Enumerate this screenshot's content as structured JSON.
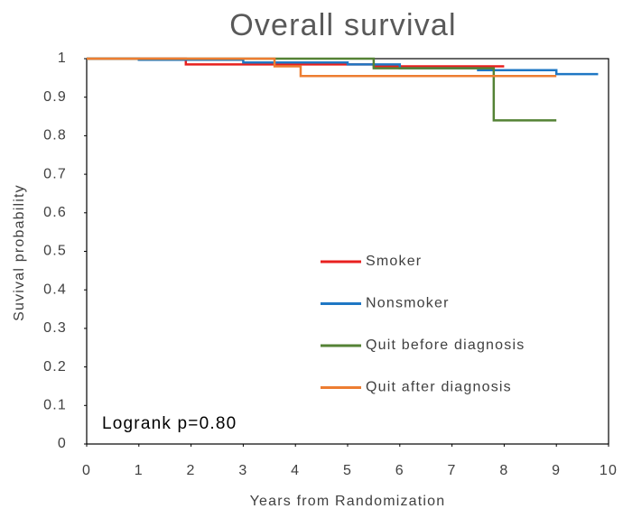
{
  "chart_data": {
    "type": "line",
    "step": true,
    "title": "Overall survival",
    "x_label": "Years from Randomization",
    "y_label": "Suvival probability",
    "annotation": "Logrank p=0.80",
    "xlim": [
      0,
      10
    ],
    "ylim": [
      0,
      1
    ],
    "xticks": [
      0,
      1,
      2,
      3,
      4,
      5,
      6,
      7,
      8,
      9,
      10
    ],
    "yticks": [
      0,
      0.1,
      0.2,
      0.3,
      0.4,
      0.5,
      0.6,
      0.7,
      0.8,
      0.9,
      1
    ],
    "series": [
      {
        "name": "Smoker",
        "color": "#e8201f",
        "x": [
          0,
          1.9,
          5.5,
          8.0
        ],
        "values": [
          1,
          0.985,
          0.98,
          0.98
        ]
      },
      {
        "name": "Nonsmoker",
        "color": "#1f77c4",
        "x": [
          0,
          1.0,
          3.0,
          5.0,
          6.0,
          7.5,
          9.0,
          9.8
        ],
        "values": [
          1,
          0.997,
          0.99,
          0.985,
          0.975,
          0.97,
          0.96,
          0.96
        ]
      },
      {
        "name": "Quit before diagnosis",
        "color": "#548235",
        "x": [
          0,
          5.5,
          7.8,
          9.0
        ],
        "values": [
          1,
          0.975,
          0.84,
          0.84
        ]
      },
      {
        "name": "Quit after diagnosis",
        "color": "#ed7d31",
        "x": [
          0,
          3.6,
          4.1,
          9.0
        ],
        "values": [
          1,
          0.98,
          0.955,
          0.955
        ]
      }
    ]
  }
}
